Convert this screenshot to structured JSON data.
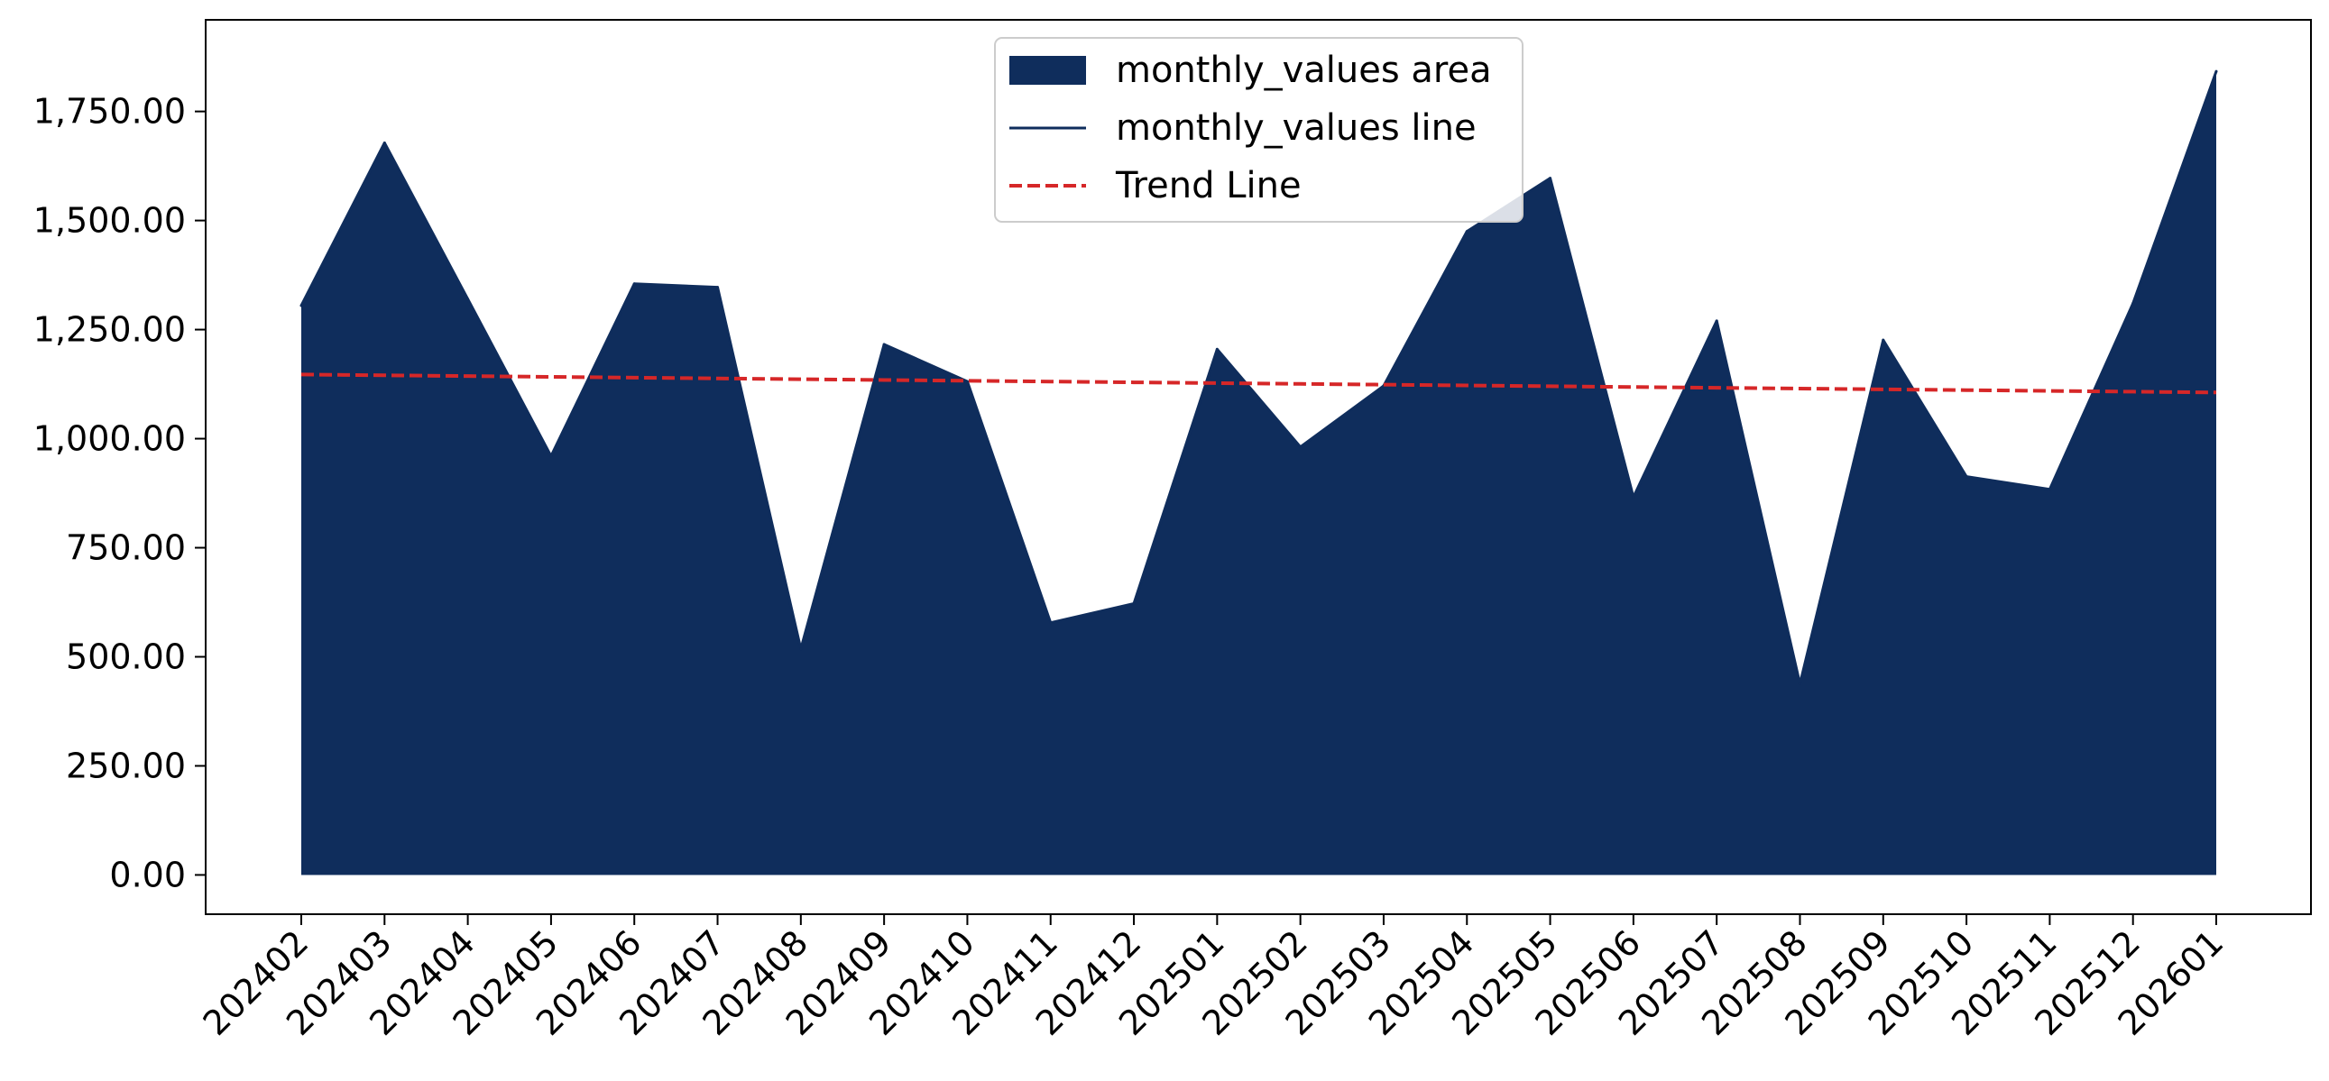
{
  "chart_data": {
    "type": "area",
    "title": "",
    "xlabel": "",
    "ylabel": "",
    "categories": [
      "202402",
      "202403",
      "202404",
      "202405",
      "202406",
      "202407",
      "202408",
      "202409",
      "202410",
      "202411",
      "202412",
      "202501",
      "202502",
      "202503",
      "202504",
      "202505",
      "202506",
      "202507",
      "202508",
      "202509",
      "202510",
      "202511",
      "202512",
      "202601"
    ],
    "series": [
      {
        "name": "monthly_values area",
        "kind": "area",
        "color": "#0f2d5c",
        "values": [
          1305,
          1678,
          1320,
          960,
          1355,
          1347,
          518,
          1216,
          1131,
          578,
          622,
          1205,
          981,
          1121,
          1475,
          1597,
          866,
          1270,
          438,
          1226,
          913,
          884,
          1310,
          1842
        ]
      },
      {
        "name": "monthly_values line",
        "kind": "line",
        "color": "#0f2d5c",
        "values": [
          1305,
          1678,
          1320,
          960,
          1355,
          1347,
          518,
          1216,
          1131,
          578,
          622,
          1205,
          981,
          1121,
          1475,
          1597,
          866,
          1270,
          438,
          1226,
          913,
          884,
          1310,
          1842
        ]
      },
      {
        "name": "Trend Line",
        "kind": "trend",
        "color": "#d62728",
        "dash": "dashed",
        "values": [
          1147,
          1145.2,
          1143.4,
          1141.6,
          1139.9,
          1138.1,
          1136.3,
          1134.5,
          1132.7,
          1130.9,
          1129.1,
          1127.3,
          1125.6,
          1123.8,
          1122,
          1120.2,
          1118.4,
          1116.6,
          1114.8,
          1113,
          1111.3,
          1109.5,
          1107.7,
          1105.9
        ]
      }
    ],
    "ylim": [
      -90,
      1960
    ],
    "yticks": [
      0,
      250,
      500,
      750,
      1000,
      1250,
      1500,
      1750
    ],
    "ytick_labels": [
      "0.00",
      "250.00",
      "500.00",
      "750.00",
      "1,000.00",
      "1,250.00",
      "1,500.00",
      "1,750.00"
    ],
    "grid": false,
    "legend_position": "top-center"
  }
}
